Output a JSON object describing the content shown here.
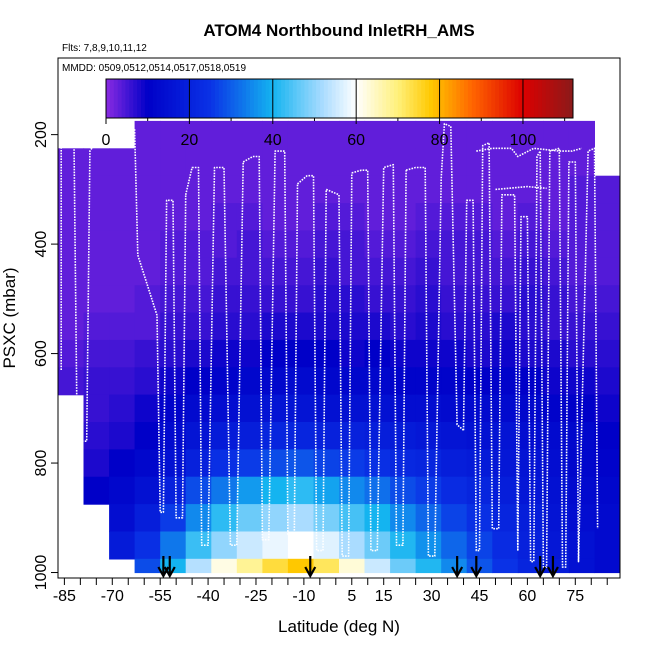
{
  "chart_data": {
    "type": "heatmap",
    "title": "ATOM4 Northbound InletRH_AMS",
    "flights_note": "Flts: 7,8,9,10,11,12",
    "dates_note": "MMDD: 0509,0512,0514,0517,0518,0519",
    "xlabel": "Latitude (deg N)",
    "ylabel": "PSXC (mbar)",
    "xlim": [
      -87,
      89
    ],
    "ylim": [
      1010,
      60
    ],
    "x_ticks": [
      -85,
      -70,
      -55,
      -40,
      -25,
      -10,
      5,
      15,
      30,
      45,
      60,
      75
    ],
    "x_minor_ticks": [
      -80,
      -75,
      -65,
      -60,
      -50,
      -45,
      -35,
      -30,
      -20,
      -15,
      -5,
      0,
      10,
      20,
      25,
      35,
      40,
      50,
      55,
      65,
      70,
      80,
      85
    ],
    "y_ticks": [
      200,
      400,
      600,
      800,
      1000
    ],
    "colorbar": {
      "min": 0,
      "max": 112,
      "ticks": [
        0,
        20,
        40,
        60,
        80,
        100
      ],
      "stops": [
        {
          "v": 0,
          "c": "#8a2be2"
        },
        {
          "v": 10,
          "c": "#0000c8"
        },
        {
          "v": 25,
          "c": "#0a32e6"
        },
        {
          "v": 40,
          "c": "#14b4f0"
        },
        {
          "v": 52,
          "c": "#aadcff"
        },
        {
          "v": 60,
          "c": "#ffffff"
        },
        {
          "v": 70,
          "c": "#fff07a"
        },
        {
          "v": 78,
          "c": "#ffc800"
        },
        {
          "v": 88,
          "c": "#ff6400"
        },
        {
          "v": 100,
          "c": "#dc0000"
        },
        {
          "v": 112,
          "c": "#8b1a1a"
        }
      ]
    },
    "pressure_levels": [
      175,
      225,
      275,
      325,
      375,
      425,
      475,
      525,
      575,
      625,
      675,
      725,
      775,
      825,
      875,
      925,
      975,
      1000
    ],
    "lat_bins": [
      -87,
      -79,
      -71,
      -63,
      -55,
      -47,
      -39,
      -31,
      -23,
      -15,
      -7,
      1,
      9,
      17,
      25,
      33,
      41,
      49,
      57,
      65,
      73,
      81,
      89
    ],
    "rh_grid": [
      [
        null,
        null,
        null,
        3,
        3,
        3,
        3,
        3,
        3,
        3,
        3,
        3,
        3,
        3,
        3,
        3,
        3,
        3,
        3,
        3,
        3,
        null
      ],
      [
        3,
        3,
        3,
        3,
        3,
        3,
        3,
        3,
        3,
        3,
        3,
        3,
        3,
        3,
        3,
        3,
        3,
        3,
        3,
        3,
        3,
        null
      ],
      [
        3,
        3,
        3,
        3,
        3,
        3,
        3,
        3,
        3,
        3,
        3,
        3,
        3,
        3,
        3,
        3,
        3,
        3,
        3,
        3,
        4,
        4
      ],
      [
        3,
        3,
        3,
        3,
        3,
        3,
        4,
        4,
        3,
        3,
        4,
        4,
        3,
        3,
        4,
        4,
        4,
        3,
        4,
        3,
        4,
        4
      ],
      [
        3,
        3,
        3,
        3,
        4,
        4,
        4,
        5,
        4,
        4,
        5,
        5,
        4,
        4,
        5,
        5,
        5,
        4,
        5,
        4,
        4,
        4
      ],
      [
        3,
        3,
        3,
        3,
        4,
        4,
        5,
        5,
        5,
        5,
        6,
        5,
        5,
        5,
        6,
        5,
        5,
        5,
        6,
        5,
        4,
        4
      ],
      [
        3,
        3,
        3,
        4,
        5,
        5,
        6,
        6,
        6,
        6,
        7,
        7,
        6,
        6,
        7,
        6,
        6,
        6,
        7,
        6,
        5,
        5
      ],
      [
        3,
        4,
        4,
        4,
        6,
        6,
        7,
        7,
        8,
        8,
        8,
        8,
        8,
        7,
        8,
        7,
        7,
        8,
        7,
        6,
        6,
        6
      ],
      [
        4,
        5,
        5,
        6,
        7,
        8,
        9,
        9,
        10,
        10,
        10,
        9,
        10,
        9,
        9,
        9,
        8,
        9,
        8,
        8,
        7,
        7
      ],
      [
        5,
        6,
        6,
        7,
        9,
        10,
        11,
        12,
        12,
        13,
        12,
        12,
        12,
        11,
        11,
        11,
        10,
        11,
        10,
        9,
        9,
        8
      ],
      [
        null,
        6,
        7,
        9,
        11,
        13,
        14,
        15,
        16,
        16,
        15,
        15,
        15,
        14,
        14,
        13,
        13,
        13,
        12,
        11,
        10,
        9
      ],
      [
        null,
        7,
        8,
        10,
        13,
        16,
        18,
        19,
        21,
        21,
        20,
        20,
        19,
        18,
        17,
        16,
        15,
        16,
        14,
        13,
        12,
        10
      ],
      [
        null,
        8,
        10,
        12,
        15,
        20,
        24,
        26,
        28,
        29,
        27,
        26,
        24,
        22,
        21,
        19,
        18,
        17,
        16,
        14,
        12,
        11
      ],
      [
        null,
        10,
        12,
        15,
        20,
        28,
        33,
        37,
        40,
        42,
        38,
        35,
        32,
        28,
        26,
        23,
        21,
        19,
        17,
        15,
        13,
        12
      ],
      [
        null,
        null,
        14,
        19,
        26,
        35,
        42,
        47,
        50,
        52,
        48,
        44,
        40,
        35,
        31,
        27,
        24,
        21,
        19,
        16,
        14,
        13
      ],
      [
        null,
        null,
        18,
        24,
        33,
        43,
        50,
        55,
        58,
        60,
        57,
        52,
        47,
        41,
        36,
        31,
        27,
        23,
        20,
        17,
        15,
        13
      ],
      [
        null,
        null,
        null,
        28,
        40,
        53,
        62,
        68,
        74,
        78,
        72,
        63,
        55,
        47,
        41,
        35,
        29,
        25,
        21,
        18,
        15,
        13
      ]
    ],
    "profile_arrows_lat": [
      -54,
      -52,
      -8,
      38,
      44,
      64,
      68
    ],
    "flight_track": {
      "segments": [
        [
          [
            -86,
            630
          ],
          [
            -86,
            215
          ],
          [
            -82,
            215
          ],
          [
            -81,
            760
          ],
          [
            -78,
            760
          ],
          [
            -77,
            230
          ],
          [
            -73,
            195
          ],
          [
            -65,
            190
          ],
          [
            -63,
            190
          ]
        ],
        [
          [
            -63,
            190
          ],
          [
            -62,
            420
          ],
          [
            -56,
            530
          ],
          [
            -55,
            890
          ],
          [
            -54,
            890
          ],
          [
            -53,
            320
          ],
          [
            -51,
            320
          ],
          [
            -50,
            900
          ],
          [
            -48,
            900
          ],
          [
            -47,
            310
          ]
        ],
        [
          [
            -47,
            310
          ],
          [
            -45,
            260
          ],
          [
            -43,
            260
          ],
          [
            -42,
            950
          ],
          [
            -40,
            950
          ],
          [
            -38,
            260
          ],
          [
            -35,
            260
          ],
          [
            -33,
            950
          ],
          [
            -31,
            950
          ],
          [
            -29,
            250
          ]
        ],
        [
          [
            -29,
            250
          ],
          [
            -26,
            240
          ],
          [
            -24,
            240
          ],
          [
            -23,
            940
          ],
          [
            -21,
            940
          ],
          [
            -19,
            230
          ],
          [
            -16,
            230
          ],
          [
            -15,
            930
          ],
          [
            -13,
            930
          ],
          [
            -12,
            290
          ]
        ],
        [
          [
            -12,
            290
          ],
          [
            -9,
            275
          ],
          [
            -7,
            275
          ],
          [
            -6,
            960
          ],
          [
            -4,
            960
          ],
          [
            -3,
            300
          ],
          [
            1,
            310
          ],
          [
            2,
            970
          ],
          [
            4,
            970
          ],
          [
            5,
            270
          ]
        ],
        [
          [
            5,
            270
          ],
          [
            8,
            265
          ],
          [
            10,
            265
          ],
          [
            11,
            960
          ],
          [
            13,
            960
          ],
          [
            15,
            260
          ],
          [
            18,
            255
          ],
          [
            19,
            950
          ],
          [
            21,
            950
          ],
          [
            22,
            265
          ]
        ],
        [
          [
            22,
            265
          ],
          [
            25,
            260
          ],
          [
            28,
            260
          ],
          [
            29,
            970
          ],
          [
            31,
            970
          ],
          [
            33,
            280
          ],
          [
            34,
            180
          ],
          [
            36,
            185
          ],
          [
            38,
            730
          ],
          [
            40,
            740
          ]
        ],
        [
          [
            40,
            740
          ],
          [
            41,
            320
          ],
          [
            43,
            320
          ],
          [
            44,
            960
          ],
          [
            45,
            960
          ],
          [
            46,
            220
          ],
          [
            48,
            215
          ],
          [
            49,
            920
          ],
          [
            51,
            920
          ],
          [
            52,
            310
          ],
          [
            56,
            310
          ],
          [
            57,
            960
          ]
        ],
        [
          [
            57,
            960
          ],
          [
            58,
            350
          ],
          [
            60,
            350
          ],
          [
            61,
            980
          ],
          [
            62,
            980
          ],
          [
            63,
            240
          ],
          [
            64,
            230
          ],
          [
            65,
            990
          ],
          [
            66,
            990
          ],
          [
            67,
            230
          ],
          [
            70,
            225
          ],
          [
            71,
            990
          ],
          [
            72,
            990
          ],
          [
            73,
            250
          ],
          [
            75,
            250
          ],
          [
            76,
            980
          ],
          [
            79,
            230
          ],
          [
            81,
            225
          ],
          [
            82,
            920
          ]
        ],
        [
          [
            44,
            230
          ],
          [
            49,
            225
          ],
          [
            55,
            225
          ],
          [
            57,
            240
          ],
          [
            62,
            225
          ],
          [
            70,
            230
          ],
          [
            74,
            230
          ],
          [
            77,
            225
          ]
        ],
        [
          [
            50,
            300
          ],
          [
            60,
            295
          ],
          [
            66,
            298
          ]
        ]
      ]
    }
  }
}
